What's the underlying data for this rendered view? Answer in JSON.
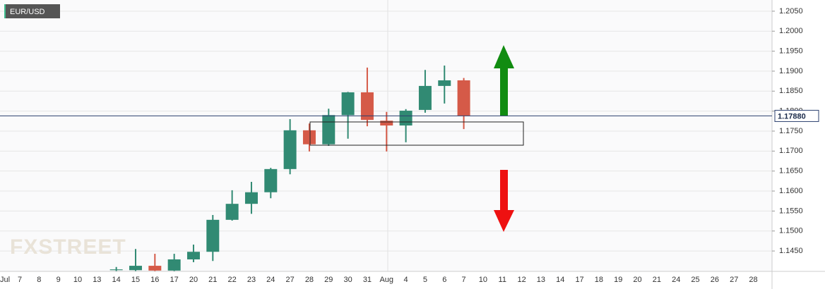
{
  "chart_data": {
    "type": "candlestick",
    "title": "EUR/USD",
    "watermark": "FXSTREET",
    "categories": [
      "Jul",
      "7",
      "8",
      "9",
      "10",
      "13",
      "14",
      "15",
      "16",
      "17",
      "20",
      "21",
      "22",
      "23",
      "24",
      "27",
      "28",
      "29",
      "30",
      "31",
      "Aug",
      "4",
      "5",
      "6",
      "7",
      "10",
      "11",
      "12",
      "13",
      "14",
      "17",
      "18",
      "19",
      "20",
      "21",
      "24",
      "25",
      "26",
      "27",
      "28"
    ],
    "open": [
      null,
      null,
      null,
      null,
      null,
      null,
      1.1402,
      1.1402,
      1.1413,
      1.1401,
      1.1429,
      1.1448,
      1.1528,
      1.1568,
      1.1597,
      1.1655,
      1.1752,
      1.1717,
      1.179,
      1.1847,
      1.1776,
      1.1764,
      1.1803,
      1.1863,
      1.1877,
      null,
      null,
      null,
      null,
      null,
      null,
      null,
      null,
      null,
      null,
      null,
      null,
      null,
      null,
      null
    ],
    "high": [
      null,
      null,
      null,
      null,
      null,
      null,
      1.141,
      1.1455,
      1.1443,
      1.1443,
      1.1466,
      1.154,
      1.1602,
      1.1623,
      1.1658,
      1.178,
      1.1769,
      1.1806,
      1.1848,
      1.1909,
      1.1798,
      1.1805,
      1.1903,
      1.1914,
      1.1883,
      null,
      null,
      null,
      null,
      null,
      null,
      null,
      null,
      null,
      null,
      null,
      null,
      null,
      null,
      null
    ],
    "low": [
      null,
      null,
      null,
      null,
      null,
      null,
      1.1399,
      1.14,
      1.1399,
      1.1399,
      1.1422,
      1.1425,
      1.1526,
      1.1543,
      1.1582,
      1.1642,
      1.1699,
      1.1713,
      1.1731,
      1.1762,
      1.1699,
      1.1722,
      1.1796,
      1.1819,
      1.1755,
      null,
      null,
      null,
      null,
      null,
      null,
      null,
      null,
      null,
      null,
      null,
      null,
      null,
      null,
      null
    ],
    "close": [
      null,
      null,
      null,
      null,
      null,
      null,
      1.1404,
      1.1413,
      1.1401,
      1.1429,
      1.1448,
      1.1528,
      1.1568,
      1.1597,
      1.1655,
      1.1752,
      1.1717,
      1.179,
      1.1847,
      1.1778,
      1.1764,
      1.1801,
      1.1863,
      1.1877,
      1.1788,
      null,
      null,
      null,
      null,
      null,
      null,
      null,
      null,
      null,
      null,
      null,
      null,
      null,
      null,
      null
    ],
    "up_color": "#318a73",
    "down_color": "#d55a48",
    "ylim": [
      1.1399,
      1.2078
    ],
    "yticks": [
      {
        "value": 1.145,
        "label": "1.1450"
      },
      {
        "value": 1.15,
        "label": "1.1500"
      },
      {
        "value": 1.155,
        "label": "1.1550"
      },
      {
        "value": 1.16,
        "label": "1.1600"
      },
      {
        "value": 1.165,
        "label": "1.1650"
      },
      {
        "value": 1.17,
        "label": "1.1700"
      },
      {
        "value": 1.175,
        "label": "1.1750"
      },
      {
        "value": 1.18,
        "label": "1.1800"
      },
      {
        "value": 1.185,
        "label": "1.1850"
      },
      {
        "value": 1.19,
        "label": "1.1900"
      },
      {
        "value": 1.195,
        "label": "1.1950"
      },
      {
        "value": 1.2,
        "label": "1.2000"
      },
      {
        "value": 1.205,
        "label": "1.2050"
      }
    ],
    "current_price": {
      "value": 1.1788,
      "label": "1.17880"
    },
    "grid": true
  }
}
